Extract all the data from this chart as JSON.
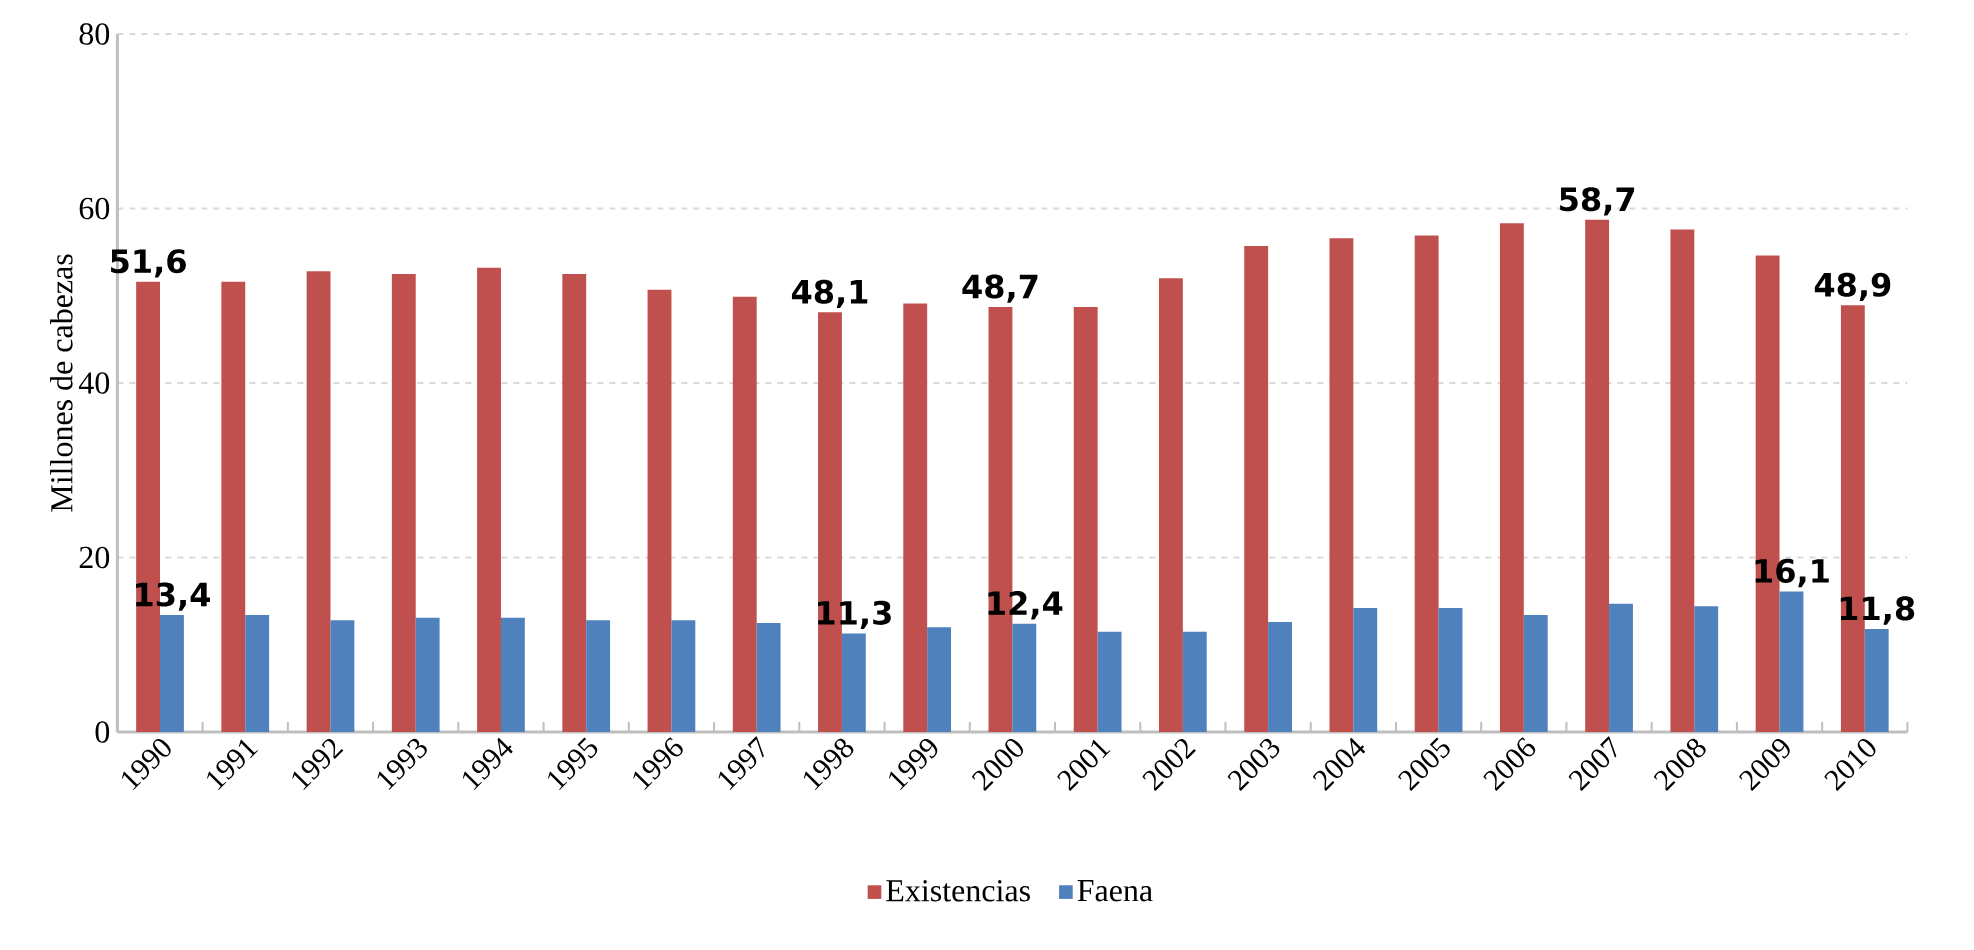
{
  "chart_data": {
    "type": "bar",
    "ylabel": "Millones de cabezas",
    "categories": [
      "1990",
      "1991",
      "1992",
      "1993",
      "1994",
      "1995",
      "1996",
      "1997",
      "1998",
      "1999",
      "2000",
      "2001",
      "2002",
      "2003",
      "2004",
      "2005",
      "2006",
      "2007",
      "2008",
      "2009",
      "2010"
    ],
    "series": [
      {
        "name": "Existencias",
        "color": "#c0504d",
        "values": [
          51.6,
          51.6,
          52.8,
          52.5,
          53.2,
          52.5,
          50.7,
          49.9,
          48.1,
          49.1,
          48.7,
          48.7,
          52.0,
          55.7,
          56.6,
          56.9,
          58.3,
          58.7,
          57.6,
          54.6,
          48.9
        ],
        "value_labels": [
          "51,6",
          null,
          null,
          null,
          null,
          null,
          null,
          null,
          "48,1",
          null,
          "48,7",
          null,
          null,
          null,
          null,
          null,
          null,
          "58,7",
          null,
          null,
          "48,9"
        ]
      },
      {
        "name": "Faena",
        "color": "#4f81bd",
        "values": [
          13.4,
          13.4,
          12.8,
          13.1,
          13.1,
          12.8,
          12.8,
          12.5,
          11.3,
          12.0,
          12.4,
          11.5,
          11.5,
          12.6,
          14.2,
          14.2,
          13.4,
          14.7,
          14.4,
          16.1,
          11.8
        ],
        "value_labels": [
          "13,4",
          null,
          null,
          null,
          null,
          null,
          null,
          null,
          "11,3",
          null,
          "12,4",
          null,
          null,
          null,
          null,
          null,
          null,
          null,
          null,
          "16,1",
          "11,8"
        ]
      }
    ],
    "ylim": [
      0,
      80
    ],
    "yticks": [
      0,
      20,
      40,
      60,
      80
    ],
    "grid": "y",
    "legend": "bottom"
  }
}
